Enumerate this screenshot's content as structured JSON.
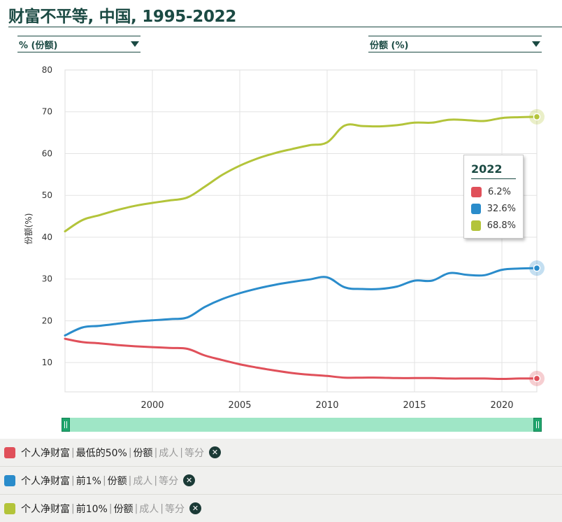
{
  "page": {
    "title": "财富不平等, 中国, 1995-2022"
  },
  "controls": {
    "y_select": "% (份额)",
    "x_select": "份额 (%)"
  },
  "chart_data": {
    "type": "line",
    "title": "",
    "xlabel": "",
    "ylabel": "份额(%)",
    "xlim": [
      1995,
      2022
    ],
    "ylim": [
      3,
      80
    ],
    "y_ticks": [
      10,
      20,
      30,
      40,
      50,
      60,
      70,
      80
    ],
    "x_ticks": [
      2000,
      2005,
      2010,
      2015,
      2020
    ],
    "grid": true,
    "x": [
      1995,
      1996,
      1997,
      1998,
      1999,
      2000,
      2001,
      2002,
      2003,
      2004,
      2005,
      2006,
      2007,
      2008,
      2009,
      2010,
      2011,
      2012,
      2013,
      2014,
      2015,
      2016,
      2017,
      2018,
      2019,
      2020,
      2021,
      2022
    ],
    "series": [
      {
        "name": "个人净财富 | 最低的50% | 份额 | 成人 | 等分",
        "color": "#e0505a",
        "values": [
          15.7,
          14.9,
          14.6,
          14.2,
          13.9,
          13.7,
          13.5,
          13.3,
          11.7,
          10.6,
          9.6,
          8.8,
          8.1,
          7.5,
          7.1,
          6.8,
          6.4,
          6.4,
          6.4,
          6.3,
          6.3,
          6.3,
          6.2,
          6.2,
          6.2,
          6.1,
          6.2,
          6.2
        ]
      },
      {
        "name": "个人净财富 | 前1% | 份额 | 成人 | 等分",
        "color": "#2a8ccb",
        "values": [
          16.5,
          18.4,
          18.8,
          19.3,
          19.8,
          20.1,
          20.4,
          20.8,
          23.3,
          25.2,
          26.6,
          27.7,
          28.6,
          29.3,
          29.9,
          30.4,
          28.0,
          27.6,
          27.6,
          28.2,
          29.6,
          29.6,
          31.4,
          31.0,
          30.9,
          32.2,
          32.5,
          32.6
        ]
      },
      {
        "name": "个人净财富 | 前10% | 份额 | 成人 | 等分",
        "color": "#b3c43a",
        "values": [
          41.4,
          44.1,
          45.3,
          46.5,
          47.5,
          48.2,
          48.8,
          49.5,
          52.1,
          54.9,
          57.1,
          58.8,
          60.1,
          61.1,
          62.0,
          62.7,
          66.7,
          66.6,
          66.5,
          66.8,
          67.4,
          67.4,
          68.1,
          68.0,
          67.8,
          68.5,
          68.7,
          68.8
        ]
      }
    ],
    "tooltip": {
      "year": "2022",
      "rows": [
        {
          "label": "6.2%",
          "color": "#e0505a"
        },
        {
          "label": "32.6%",
          "color": "#2a8ccb"
        },
        {
          "label": "68.8%",
          "color": "#b3c43a"
        }
      ]
    }
  },
  "legend": {
    "items": [
      {
        "color": "#e0505a",
        "p1": "个人净财富",
        "p2": "最低的50%",
        "p3": "份额",
        "p4": "成人",
        "p5": "等分"
      },
      {
        "color": "#2a8ccb",
        "p1": "个人净财富",
        "p2": "前1%",
        "p3": "份额",
        "p4": "成人",
        "p5": "等分"
      },
      {
        "color": "#b3c43a",
        "p1": "个人净财富",
        "p2": "前10%",
        "p3": "份额",
        "p4": "成人",
        "p5": "等分"
      }
    ],
    "remove_glyph": "✕",
    "separator": "|"
  }
}
